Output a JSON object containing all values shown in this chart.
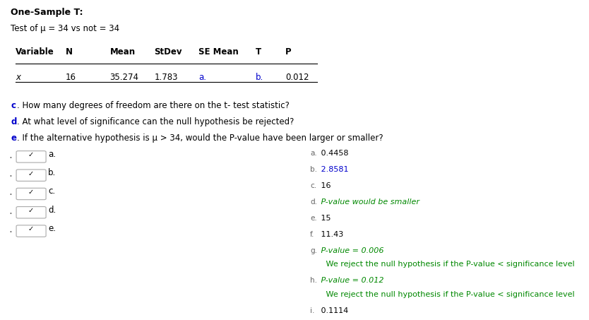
{
  "title": "One-Sample T:",
  "subtitle": "Test of μ = 34 vs not = 34",
  "table_headers": [
    "Variable",
    "N",
    "Mean",
    "StDev",
    "SE Mean",
    "T",
    "P"
  ],
  "table_row": [
    "x",
    "16",
    "35.274",
    "1.783",
    "a.",
    "b.",
    "0.012"
  ],
  "table_row_colors": [
    "black",
    "black",
    "black",
    "black",
    "#0000cc",
    "#0000cc",
    "black"
  ],
  "questions": [
    [
      "c",
      ". How many degrees of freedom are there on the t- test statistic?"
    ],
    [
      "d",
      ". At what level of significance can the null hypothesis be rejected?"
    ],
    [
      "e",
      ". If the alternative hypothesis is μ > 34, would the P-value have been larger or smaller?"
    ]
  ],
  "question_label_color": "#0000cc",
  "question_text_color": "#000000",
  "dropdown_labels": [
    "a.",
    "b.",
    "c.",
    "d.",
    "e."
  ],
  "bg_color": "#ffffff",
  "text_color": "#000000",
  "blue_color": "#0000cc",
  "green_color": "#008800",
  "gray_color": "#666666",
  "answer_data": [
    {
      "label": "a.",
      "text": " 0.4458",
      "italic": false,
      "text_color": "#000000"
    },
    {
      "label": "b.",
      "text": " 2.8581",
      "italic": false,
      "text_color": "#0000cc"
    },
    {
      "label": "c.",
      "text": " 16",
      "italic": false,
      "text_color": "#000000"
    },
    {
      "label": "d.",
      "text": " P-value would be smaller",
      "italic": true,
      "text_color": "#008800"
    },
    {
      "label": "e.",
      "text": " 15",
      "italic": false,
      "text_color": "#000000"
    },
    {
      "label": "f.",
      "text": " 11.43",
      "italic": false,
      "text_color": "#000000"
    },
    {
      "label": "g.",
      "text": " P-value = 0.006",
      "italic": true,
      "text_color": "#008800"
    },
    {
      "label": "",
      "text": "   We reject the null hypothesis if the P-value < significance level",
      "italic": false,
      "text_color": "#008800"
    },
    {
      "label": "h.",
      "text": " P-value = 0.012",
      "italic": true,
      "text_color": "#008800"
    },
    {
      "label": "",
      "text": "   We reject the null hypothesis if the P-value < significance level",
      "italic": false,
      "text_color": "#008800"
    },
    {
      "label": "i.",
      "text": " 0.1114",
      "italic": false,
      "text_color": "#000000"
    }
  ]
}
